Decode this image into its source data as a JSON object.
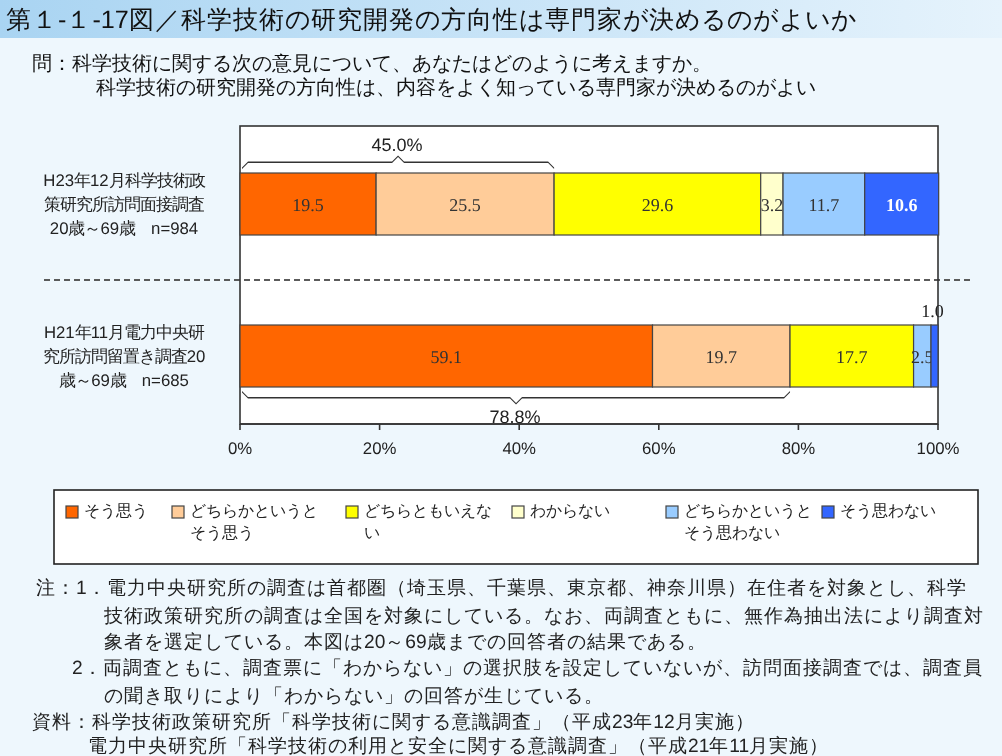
{
  "chart_data": {
    "type": "bar",
    "orientation": "horizontal",
    "stacked": true,
    "title": "第１-１-17図／科学技術の研究開発の方向性は専門家が決めるのがよいか",
    "subtitle": "問：科学技術に関する次の意見について、あなたはどのように考えますか。",
    "categories": [
      "H23年12月科学技術政策研究所訪問面接調査20歳～69歳　n=984",
      "H21年11月電力中央研究所訪問留置き調査20歳～69歳　n=685"
    ],
    "series": [
      {
        "name": "そう思う",
        "color": "#ff6600",
        "values": [
          19.5,
          59.1
        ],
        "value_labels": [
          "19.5",
          "59.1"
        ]
      },
      {
        "name": "どちらかというとそう思う",
        "color": "#ffcc99",
        "values": [
          25.5,
          19.7
        ],
        "value_labels": [
          "25.5",
          "19.7"
        ]
      },
      {
        "name": "どちらともいえない",
        "color": "#ffff00",
        "values": [
          29.6,
          17.7
        ],
        "value_labels": [
          "29.6",
          "17.7"
        ]
      },
      {
        "name": "わからない",
        "color": "#ffffcc",
        "values": [
          3.2,
          null
        ],
        "value_labels": [
          "3.2",
          null
        ]
      },
      {
        "name": "どちらかというとそう思わない",
        "color": "#99ccff",
        "values": [
          11.7,
          2.5
        ],
        "value_labels": [
          "11.7",
          "2.5"
        ]
      },
      {
        "name": "そう思わない",
        "color": "#3366ff",
        "values": [
          10.6,
          1.0
        ],
        "value_labels": [
          "10.6",
          "1.0"
        ]
      }
    ],
    "xlim": [
      0,
      100
    ],
    "xticks": [
      {
        "value": 0,
        "label": "0%"
      },
      {
        "value": 20,
        "label": "20%"
      },
      {
        "value": 40,
        "label": "40%"
      },
      {
        "value": 60,
        "label": "60%"
      },
      {
        "value": 80,
        "label": "80%"
      },
      {
        "value": 100,
        "label": "100%"
      }
    ],
    "legend": "bottom",
    "annotations": [
      "科学技術の研究開発の方向性は、内容をよく知っている専門家が決めるのがよい",
      "45.0%",
      "78.8%",
      "注：1．電力中央研究所の調査は首都圏（埼玉県、千葉県、東京都、神奈川県）在住者を対象とし、科学技術政策研究所の調査は全国を対象にしている。なお、両調査ともに、無作為抽出法により調査対象者を選定している。本図は20～69歳までの回答者の結果である。",
      "2．両調査ともに、調査票に「わからない」の選択肢を設定していないが、訪問面接調査では、調査員の聞き取りにより「わからない」の回答が生じている。",
      "資料：科学技術政策研究所「科学技術に関する意識調査」（平成23年12月実施）",
      "電力中央研究所「科学技術の利用と安全に関する意識調査」（平成21年11月実施）"
    ]
  }
}
